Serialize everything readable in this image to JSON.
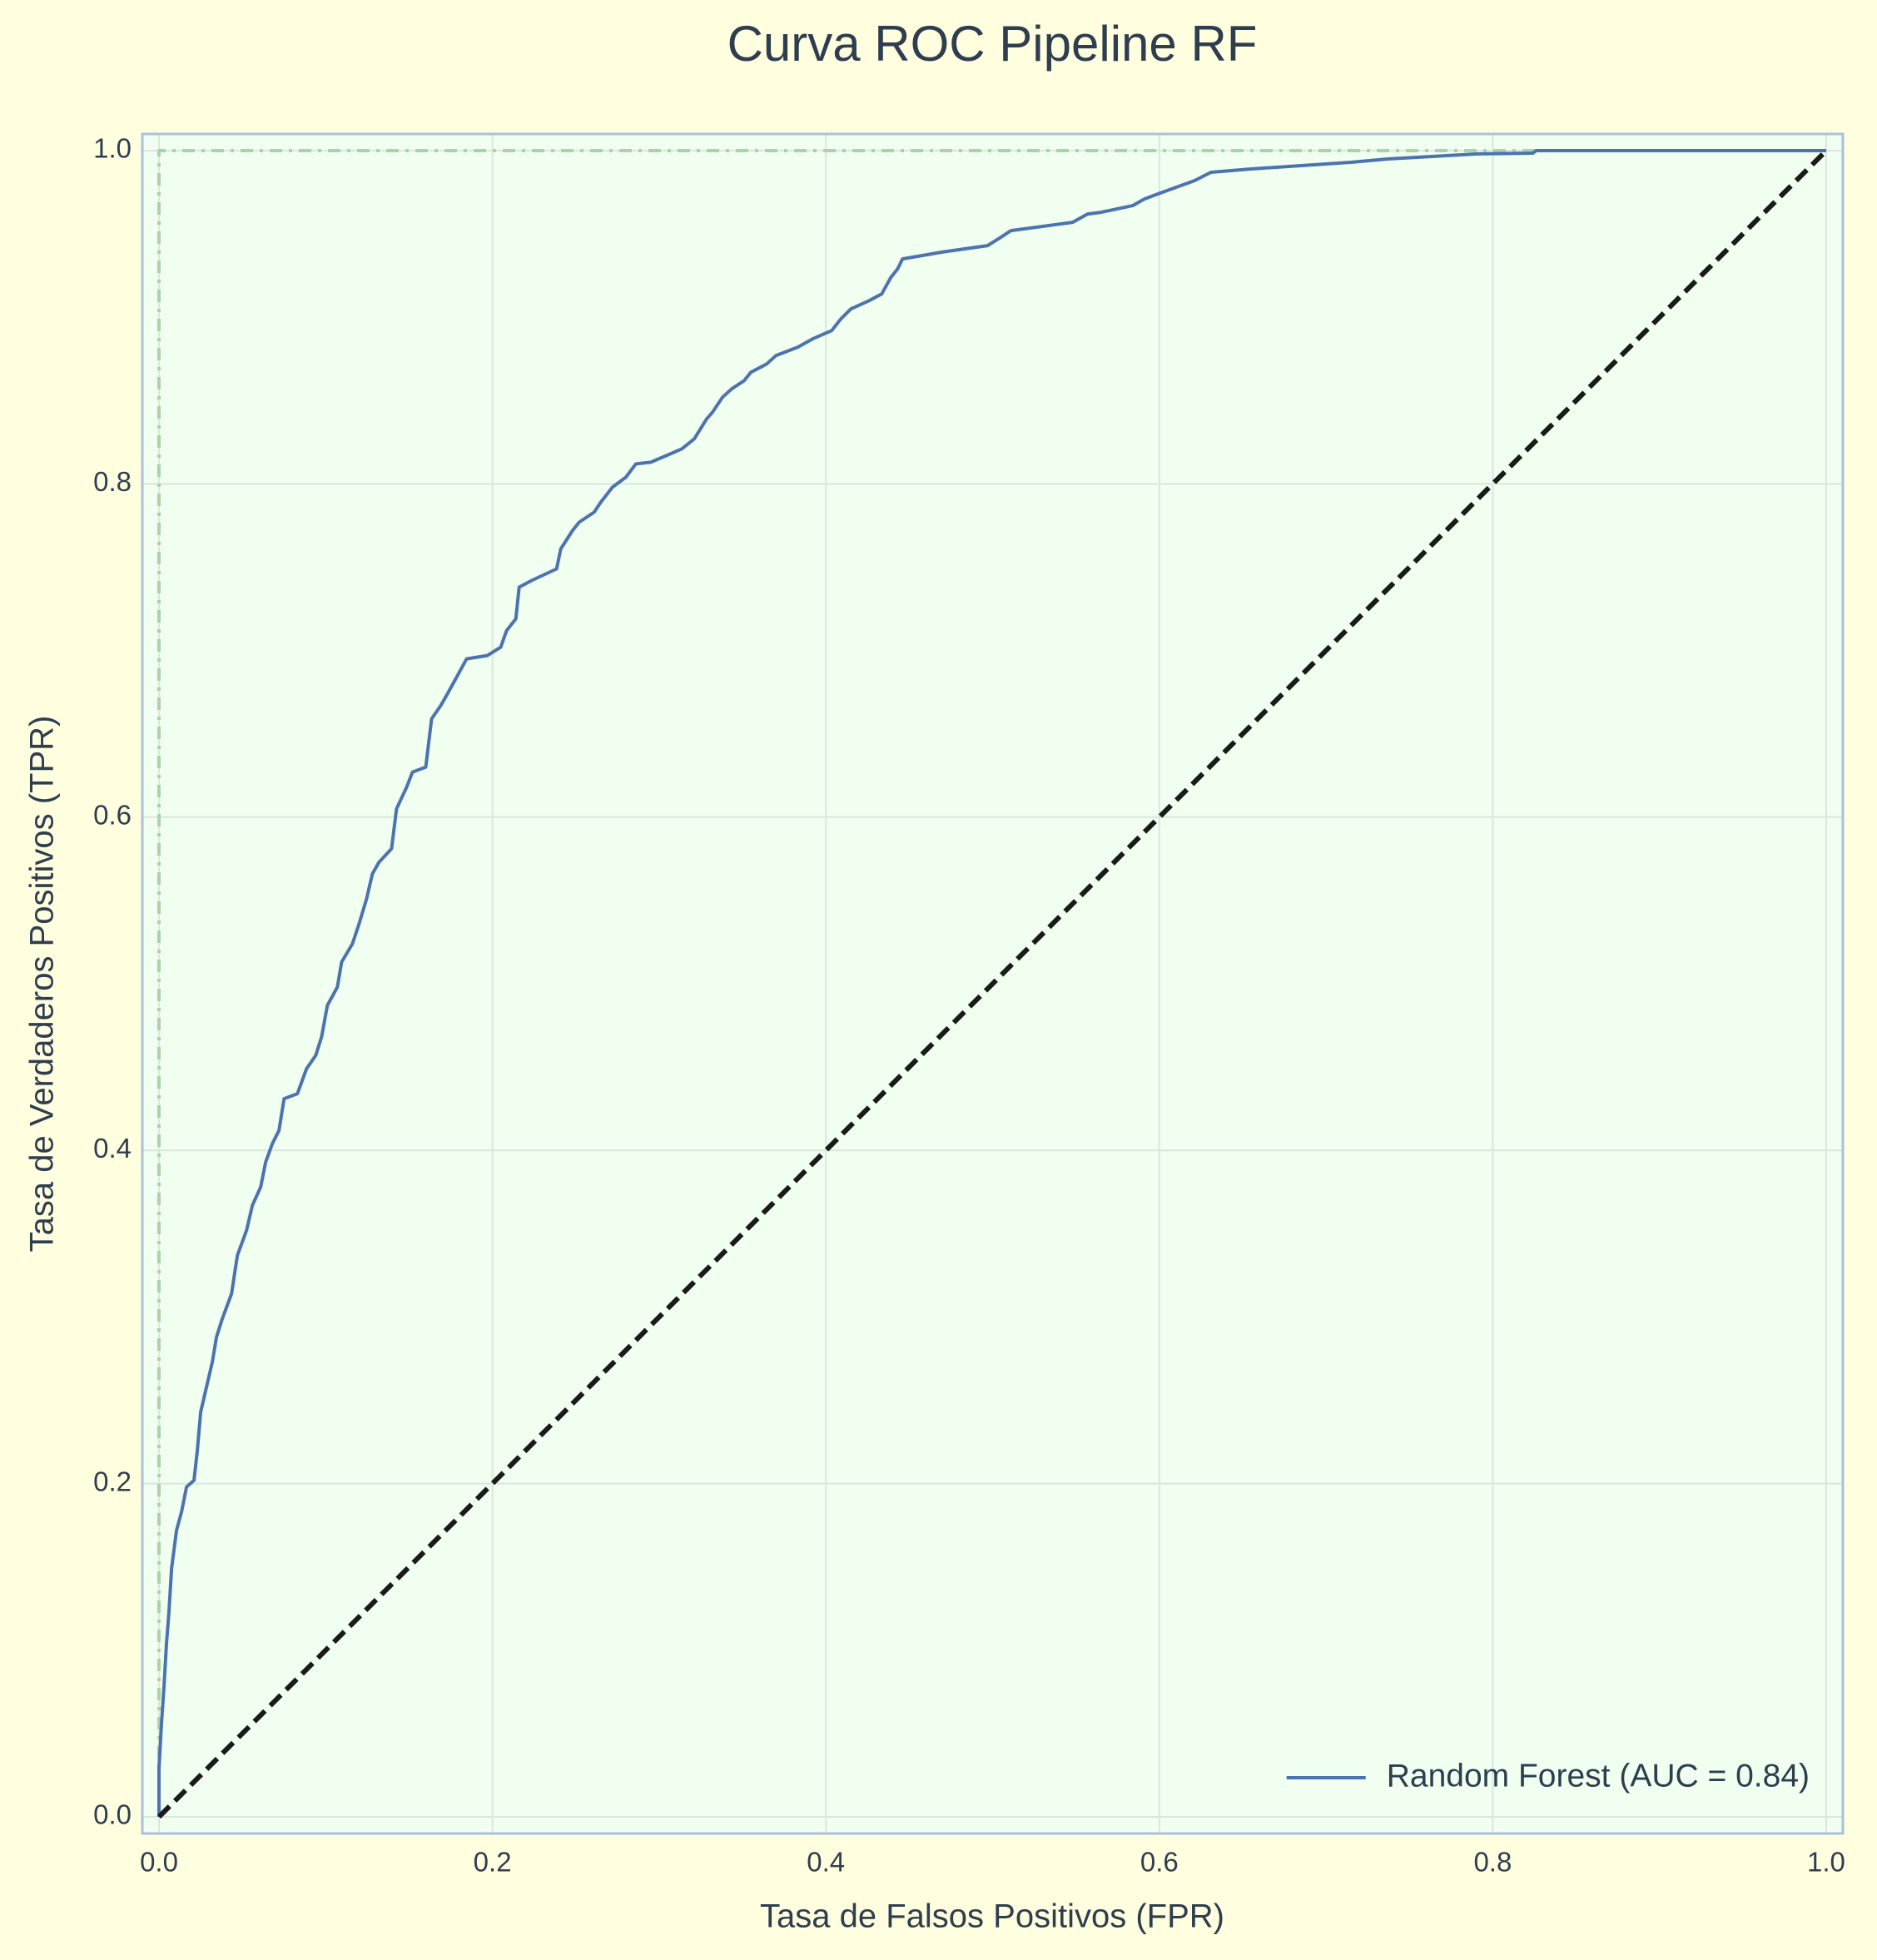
{
  "chart_data": {
    "type": "line",
    "title": "Curva ROC Pipeline RF",
    "xlabel": "Tasa de Falsos Positivos (FPR)",
    "ylabel": "Tasa de Verdaderos Positivos (TPR)",
    "xlim": [
      -0.01,
      1.01
    ],
    "ylim": [
      -0.01,
      1.01
    ],
    "xticks": [
      {
        "value": 0,
        "label": "0.0"
      },
      0.2,
      0.4,
      0.6,
      0.8,
      {
        "value": 1,
        "label": "1.0"
      }
    ],
    "yticks": [
      {
        "value": 0,
        "label": "0.0"
      },
      0.2,
      0.4,
      0.6,
      0.8,
      {
        "value": 1,
        "label": "1.0"
      }
    ],
    "grid": true,
    "legend": "lower right",
    "series": [
      {
        "color": "#a8d5a8",
        "dash": "dashdot",
        "x": [
          0,
          0,
          1
        ],
        "values": [
          0,
          1,
          1
        ]
      },
      {
        "name": "Random Forest (AUC = 0.84)",
        "color": "#4c72b0",
        "dash": "solid",
        "x": [
          0,
          0,
          0.0015,
          0.003,
          0.0045,
          0.006,
          0.0075,
          0.0105,
          0.0135,
          0.0165,
          0.021,
          0.023,
          0.025,
          0.0285,
          0.032,
          0.0345,
          0.038,
          0.0435,
          0.047,
          0.0525,
          0.056,
          0.061,
          0.064,
          0.068,
          0.072,
          0.075,
          0.083,
          0.0885,
          0.094,
          0.0975,
          0.101,
          0.107,
          0.1095,
          0.116,
          0.12,
          0.1245,
          0.128,
          0.132,
          0.1395,
          0.1425,
          0.1485,
          0.152,
          0.16,
          0.1635,
          0.169,
          0.173,
          0.1785,
          0.1845,
          0.197,
          0.205,
          0.2085,
          0.214,
          0.216,
          0.2235,
          0.2385,
          0.241,
          0.248,
          0.252,
          0.261,
          0.265,
          0.272,
          0.28,
          0.286,
          0.295,
          0.302,
          0.3135,
          0.321,
          0.3285,
          0.332,
          0.338,
          0.3435,
          0.351,
          0.355,
          0.3645,
          0.37,
          0.383,
          0.392,
          0.4035,
          0.409,
          0.415,
          0.426,
          0.4335,
          0.439,
          0.443,
          0.446,
          0.469,
          0.497,
          0.505,
          0.511,
          0.548,
          0.557,
          0.565,
          0.584,
          0.591,
          0.599,
          0.61,
          0.621,
          0.631,
          0.655,
          0.715,
          0.737,
          0.79,
          0.824,
          0.826,
          1
        ],
        "values": [
          0,
          0.029,
          0.056,
          0.078,
          0.104,
          0.123,
          0.149,
          0.172,
          0.183,
          0.198,
          0.202,
          0.22,
          0.243,
          0.258,
          0.273,
          0.288,
          0.299,
          0.314,
          0.337,
          0.352,
          0.367,
          0.378,
          0.393,
          0.404,
          0.412,
          0.431,
          0.434,
          0.449,
          0.457,
          0.468,
          0.487,
          0.498,
          0.513,
          0.524,
          0.536,
          0.551,
          0.566,
          0.573,
          0.581,
          0.605,
          0.618,
          0.627,
          0.63,
          0.659,
          0.667,
          0.674,
          0.684,
          0.695,
          0.697,
          0.702,
          0.712,
          0.719,
          0.738,
          0.742,
          0.749,
          0.761,
          0.772,
          0.777,
          0.783,
          0.789,
          0.798,
          0.804,
          0.812,
          0.813,
          0.816,
          0.821,
          0.827,
          0.839,
          0.843,
          0.852,
          0.857,
          0.862,
          0.867,
          0.872,
          0.877,
          0.882,
          0.887,
          0.892,
          0.899,
          0.905,
          0.91,
          0.914,
          0.924,
          0.929,
          0.935,
          0.939,
          0.943,
          0.948,
          0.952,
          0.957,
          0.962,
          0.963,
          0.967,
          0.971,
          0.974,
          0.978,
          0.982,
          0.987,
          0.989,
          0.993,
          0.995,
          0.998,
          0.9985,
          1,
          1
        ]
      },
      {
        "color": "#1a1a1a",
        "dash": "dashed",
        "x": [
          0,
          1
        ],
        "values": [
          0,
          1
        ]
      }
    ]
  }
}
